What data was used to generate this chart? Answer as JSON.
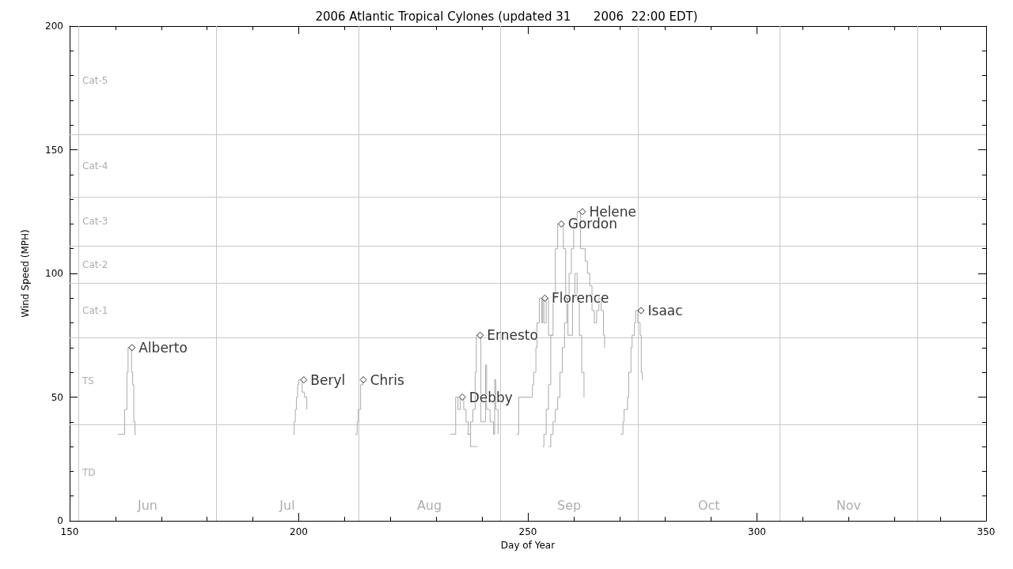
{
  "chart_data": {
    "type": "step",
    "title": "2006 Atlantic Tropical Cylones (updated 31      2006  22:00 EDT)",
    "xlabel": "Day of Year",
    "ylabel": "Wind Speed (MPH)",
    "xlim": [
      150,
      350
    ],
    "xticks": [
      150,
      200,
      250,
      300,
      350
    ],
    "ylim": [
      0,
      200
    ],
    "yticks": [
      0,
      50,
      100,
      150,
      200
    ],
    "series": [
      {
        "color": "#aaaaaa",
        "x": [
          160.5,
          161.5,
          162.0,
          162.5,
          162.75,
          163.5,
          163.75,
          164.0,
          164.25,
          164.5
        ],
        "values": [
          35,
          35,
          45,
          60,
          70,
          60,
          55,
          40,
          35,
          35
        ]
      },
      {
        "color": "#aaaaaa",
        "x": [
          198.75,
          199.0,
          199.25,
          199.5,
          199.75,
          200.0,
          200.75,
          201.25,
          201.75
        ],
        "values": [
          35,
          40,
          45,
          50,
          55,
          57,
          52,
          50,
          45
        ]
      },
      {
        "color": "#aaaaaa",
        "x": [
          212.25,
          212.75,
          213.0,
          213.5,
          214.0
        ],
        "values": [
          35,
          40,
          45,
          55,
          57
        ]
      },
      {
        "color": "#aaaaaa",
        "x": [
          233.0,
          234.25,
          234.75,
          235.25,
          235.5,
          236.0,
          236.5,
          237.0,
          237.5,
          239.0
        ],
        "values": [
          35,
          50,
          45,
          50,
          50,
          45,
          40,
          35,
          30,
          30
        ]
      },
      {
        "color": "#aaaaaa",
        "x": [
          236.75,
          237.5,
          238.0,
          238.5,
          238.75,
          239.5,
          239.75,
          240.5,
          240.75,
          241.0,
          241.75,
          242.5,
          242.75,
          243.0,
          243.5
        ],
        "values": [
          35,
          40,
          45,
          60,
          75,
          75,
          40,
          40,
          63,
          45,
          40,
          35,
          57,
          45,
          35
        ]
      },
      {
        "color": "#aaaaaa",
        "x": [
          247.5,
          248.0,
          251.0,
          251.25,
          251.75,
          252.0,
          252.5,
          253.0,
          253.25,
          253.5,
          254.0,
          254.5,
          255.5
        ],
        "values": [
          35,
          50,
          55,
          60,
          70,
          80,
          90,
          80,
          90,
          80,
          90,
          75,
          75
        ]
      },
      {
        "color": "#aaaaaa",
        "x": [
          253.25,
          253.5,
          254.0,
          254.5,
          255.0,
          255.5,
          256.0,
          256.5,
          257.25,
          257.75,
          258.25,
          258.75,
          259.25,
          259.75,
          260.25,
          260.75,
          261.25,
          261.75,
          262.25
        ],
        "values": [
          30,
          35,
          45,
          55,
          75,
          90,
          110,
          120,
          120,
          110,
          90,
          75,
          75,
          90,
          100,
          90,
          75,
          60,
          50
        ]
      },
      {
        "color": "#aaaaaa",
        "x": [
          254.5,
          255.0,
          255.5,
          256.0,
          256.5,
          257.0,
          257.5,
          258.0,
          258.5,
          259.0,
          259.5,
          260.0,
          260.75,
          261.5,
          262.0,
          262.5,
          263.0,
          263.5,
          264.0,
          264.5,
          265.0,
          265.5,
          266.0,
          266.5,
          266.75
        ],
        "values": [
          30,
          35,
          40,
          45,
          50,
          60,
          70,
          80,
          90,
          100,
          110,
          120,
          125,
          110,
          110,
          105,
          100,
          95,
          85,
          80,
          85,
          90,
          85,
          75,
          70
        ]
      },
      {
        "color": "#aaaaaa",
        "x": [
          270.25,
          270.75,
          271.0,
          271.75,
          272.0,
          272.5,
          272.75,
          273.25,
          273.5,
          274.0,
          274.5,
          274.75,
          275.0
        ],
        "values": [
          35,
          40,
          45,
          50,
          60,
          70,
          75,
          80,
          85,
          80,
          75,
          60,
          57
        ]
      },
      {
        "type": "scatter",
        "name": "Alberto",
        "color": "#000000",
        "marker": "diamond",
        "x": [
          163.6
        ],
        "values": [
          70
        ]
      },
      {
        "type": "scatter",
        "name": "Beryl",
        "color": "#000000",
        "marker": "diamond",
        "x": [
          201.1
        ],
        "values": [
          57
        ]
      },
      {
        "type": "scatter",
        "name": "Chris",
        "color": "#000000",
        "marker": "diamond",
        "x": [
          214.1
        ],
        "values": [
          57
        ]
      },
      {
        "type": "scatter",
        "name": "Debby",
        "color": "#000000",
        "marker": "diamond",
        "x": [
          235.7
        ],
        "values": [
          50
        ]
      },
      {
        "type": "scatter",
        "name": "Ernesto",
        "color": "#000000",
        "marker": "diamond",
        "x": [
          239.6
        ],
        "values": [
          75
        ]
      },
      {
        "type": "scatter",
        "name": "Florence",
        "color": "#000000",
        "marker": "diamond",
        "x": [
          253.7
        ],
        "values": [
          90
        ]
      },
      {
        "type": "scatter",
        "name": "Gordon",
        "color": "#000000",
        "marker": "diamond",
        "x": [
          257.3
        ],
        "values": [
          120
        ]
      },
      {
        "type": "scatter",
        "name": "Helene",
        "color": "#000000",
        "marker": "diamond",
        "x": [
          261.9
        ],
        "values": [
          125
        ]
      },
      {
        "type": "scatter",
        "name": "Isaac",
        "color": "#000000",
        "marker": "diamond",
        "x": [
          274.7
        ],
        "values": [
          85
        ]
      }
    ],
    "ref_lines": [
      {
        "axis": "y",
        "value": 39
      },
      {
        "axis": "y",
        "value": 74
      },
      {
        "axis": "y",
        "value": 96
      },
      {
        "axis": "y",
        "value": 111
      },
      {
        "axis": "y",
        "value": 131
      },
      {
        "axis": "y",
        "value": 156
      },
      {
        "axis": "x",
        "value": 152
      },
      {
        "axis": "x",
        "value": 182
      },
      {
        "axis": "x",
        "value": 213
      },
      {
        "axis": "x",
        "value": 244
      },
      {
        "axis": "x",
        "value": 274
      },
      {
        "axis": "x",
        "value": 305
      },
      {
        "axis": "x",
        "value": 335
      }
    ],
    "annotations": [
      "TD",
      "TS",
      "Cat-1",
      "Cat-2",
      "Cat-3",
      "Cat-4",
      "Cat-5",
      "Jun",
      "Jul",
      "Aug",
      "Sep",
      "Oct",
      "Nov"
    ]
  }
}
